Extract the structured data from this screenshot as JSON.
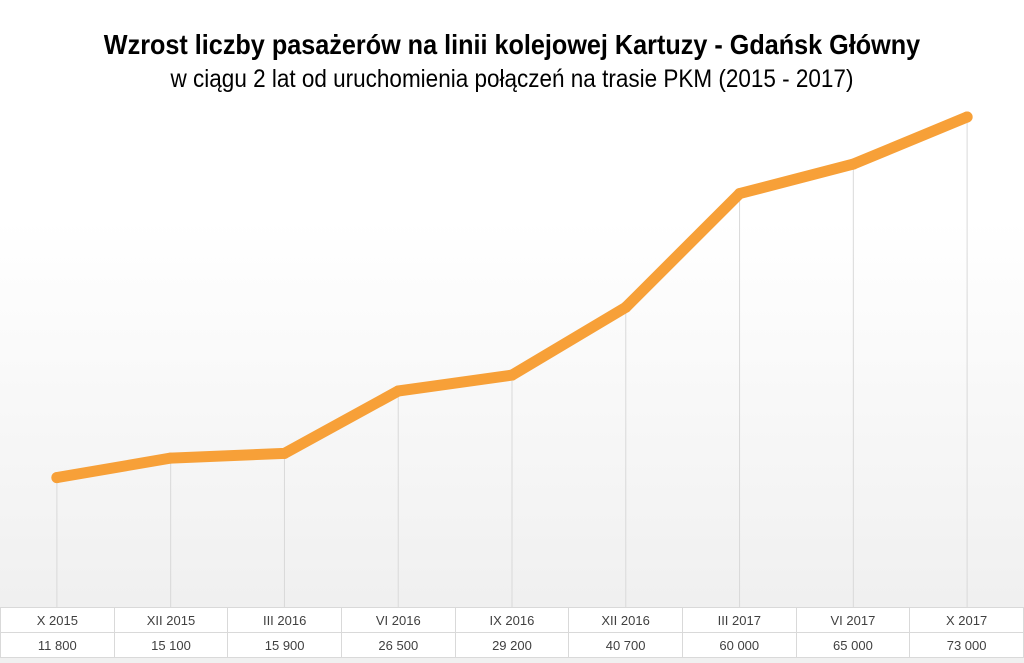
{
  "chart_data": {
    "type": "line",
    "title": "Wzrost liczby pasażerów na linii kolejowej Kartuzy - Gdańsk Główny",
    "subtitle": "w ciągu 2 lat od uruchomienia połączeń na trasie PKM (2015 - 2017)",
    "categories": [
      "X 2015",
      "XII 2015",
      "III 2016",
      "VI 2016",
      "IX 2016",
      "XII 2016",
      "III 2017",
      "VI 2017",
      "X 2017"
    ],
    "value_labels": [
      "11 800",
      "15 100",
      "15 900",
      "26 500",
      "29 200",
      "40 700",
      "60 000",
      "65 000",
      "73 000"
    ],
    "series": [
      {
        "values": [
          11800,
          15100,
          15900,
          26500,
          29200,
          40700,
          60000,
          65000,
          73000
        ]
      }
    ],
    "ylim": [
      -10000,
      75000
    ],
    "grid": "vertical",
    "legend": "none",
    "line_color": "#f7a038",
    "gridline_color": "#d9d9d9"
  }
}
